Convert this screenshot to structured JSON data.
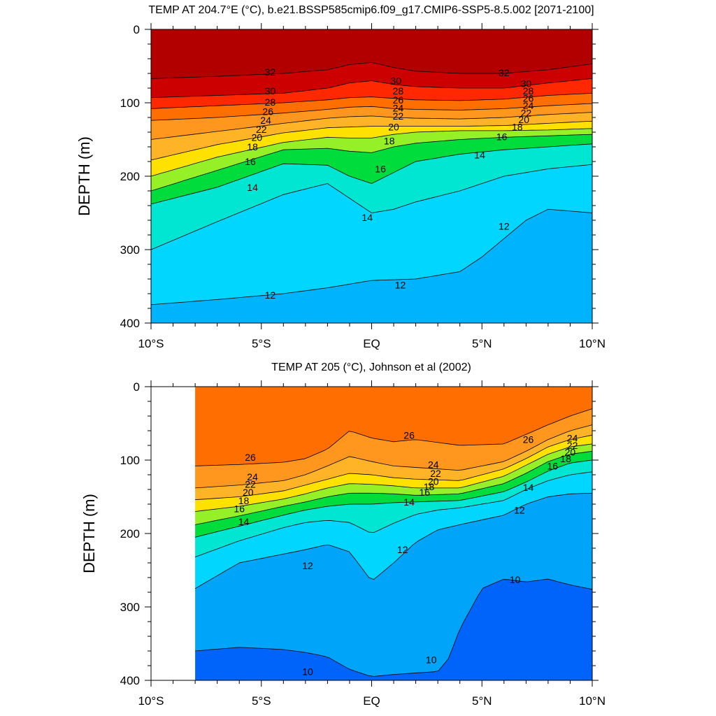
{
  "chart_data": [
    {
      "type": "contour",
      "title": "TEMP AT 204.7°E (°C), b.e21.BSSP585cmip6.f09_g17.CMIP6-SSP5-8.5.002 [2071-2100]",
      "ylabel": "DEPTH (m)",
      "xlabel": "",
      "x_ticks": [
        -10,
        -5,
        0,
        5,
        10
      ],
      "x_tick_labels": [
        "10°S",
        "5°S",
        "EQ",
        "5°N",
        "10°N"
      ],
      "y_ticks": [
        0,
        100,
        200,
        300,
        400
      ],
      "y_tick_labels": [
        "0",
        "100",
        "200",
        "300",
        "400"
      ],
      "xlim": [
        -10,
        10
      ],
      "ylim": [
        400,
        0
      ],
      "data_xlim": [
        -10,
        10
      ],
      "contour_interval": 1,
      "isotherms": [
        {
          "level": 32,
          "x": [
            -10,
            -7,
            -4,
            -2,
            -1,
            0,
            1,
            2,
            4,
            6,
            8,
            10
          ],
          "depth": [
            67,
            64,
            60,
            55,
            48,
            45,
            52,
            57,
            60,
            60,
            55,
            47
          ]
        },
        {
          "level": 30,
          "x": [
            -10,
            -7,
            -4,
            -2,
            -1,
            0,
            1,
            2,
            4,
            6,
            8,
            10
          ],
          "depth": [
            93,
            90,
            87,
            80,
            73,
            70,
            75,
            78,
            80,
            80,
            73,
            67
          ]
        },
        {
          "level": 28,
          "x": [
            -10,
            -7,
            -4,
            -2,
            -1,
            0,
            1,
            2,
            4,
            6,
            8,
            10
          ],
          "depth": [
            108,
            104,
            100,
            96,
            93,
            92,
            94,
            96,
            97,
            95,
            90,
            87
          ]
        },
        {
          "level": 26,
          "x": [
            -10,
            -7,
            -4,
            -2,
            -1,
            0,
            1,
            2,
            4,
            6,
            8,
            10
          ],
          "depth": [
            124,
            120,
            114,
            109,
            106,
            105,
            108,
            109,
            110,
            108,
            104,
            101
          ]
        },
        {
          "level": 24,
          "x": [
            -10,
            -7,
            -4,
            -2,
            -1,
            0,
            1,
            2,
            4,
            6,
            8,
            10
          ],
          "depth": [
            150,
            139,
            128,
            121,
            119,
            118,
            120,
            121,
            122,
            120,
            116,
            113
          ]
        },
        {
          "level": 22,
          "x": [
            -10,
            -7,
            -4,
            -2,
            -1,
            0,
            1,
            2,
            4,
            6,
            8,
            10
          ],
          "depth": [
            178,
            157,
            141,
            134,
            133,
            132,
            132,
            132,
            132,
            131,
            128,
            125
          ]
        },
        {
          "level": 20,
          "x": [
            -10,
            -7,
            -4,
            -2,
            -1,
            0,
            1,
            2,
            4,
            6,
            8,
            10
          ],
          "depth": [
            200,
            174,
            154,
            147,
            148,
            148,
            143,
            140,
            138,
            138,
            137,
            135
          ]
        },
        {
          "level": 18,
          "x": [
            -10,
            -7,
            -4,
            -2,
            -1,
            0,
            1,
            2,
            4,
            6,
            8,
            10
          ],
          "depth": [
            220,
            192,
            164,
            162,
            166,
            168,
            160,
            155,
            150,
            147,
            145,
            143
          ]
        },
        {
          "level": 16,
          "x": [
            -10,
            -7,
            -4,
            -2,
            -1,
            0,
            1,
            2,
            4,
            6,
            8,
            10
          ],
          "depth": [
            238,
            215,
            183,
            185,
            200,
            210,
            195,
            180,
            170,
            164,
            160,
            156
          ]
        },
        {
          "level": 14,
          "x": [
            -10,
            -7,
            -4,
            -2,
            -1,
            0,
            1,
            2,
            4,
            6,
            8,
            10
          ],
          "depth": [
            300,
            262,
            225,
            210,
            230,
            250,
            245,
            235,
            220,
            200,
            190,
            184
          ]
        },
        {
          "level": 12,
          "x": [
            -10,
            -7,
            -4,
            -2,
            0,
            2,
            4,
            5,
            6,
            7,
            8,
            10
          ],
          "depth": [
            375,
            368,
            360,
            352,
            342,
            340,
            330,
            310,
            285,
            260,
            245,
            250
          ]
        }
      ],
      "contour_labels": [
        {
          "text": "32",
          "x": -4.6,
          "depth": 58
        },
        {
          "text": "32",
          "x": 6.0,
          "depth": 59
        },
        {
          "text": "30",
          "x": -4.6,
          "depth": 84
        },
        {
          "text": "30",
          "x": 1.1,
          "depth": 70
        },
        {
          "text": "30",
          "x": 7.0,
          "depth": 74
        },
        {
          "text": "28",
          "x": -4.6,
          "depth": 99
        },
        {
          "text": "28",
          "x": 1.2,
          "depth": 84
        },
        {
          "text": "28",
          "x": 7.1,
          "depth": 84
        },
        {
          "text": "26",
          "x": -4.7,
          "depth": 112
        },
        {
          "text": "26",
          "x": 1.2,
          "depth": 96
        },
        {
          "text": "26",
          "x": 7.1,
          "depth": 94
        },
        {
          "text": "24",
          "x": -4.8,
          "depth": 124
        },
        {
          "text": "24",
          "x": 1.2,
          "depth": 107
        },
        {
          "text": "24",
          "x": 7.1,
          "depth": 104
        },
        {
          "text": "22",
          "x": -5.0,
          "depth": 136
        },
        {
          "text": "22",
          "x": 1.2,
          "depth": 118
        },
        {
          "text": "22",
          "x": 7.0,
          "depth": 114
        },
        {
          "text": "20",
          "x": -5.2,
          "depth": 147
        },
        {
          "text": "20",
          "x": 1.0,
          "depth": 133
        },
        {
          "text": "20",
          "x": 6.9,
          "depth": 123
        },
        {
          "text": "18",
          "x": -5.4,
          "depth": 160
        },
        {
          "text": "18",
          "x": 0.8,
          "depth": 152
        },
        {
          "text": "18",
          "x": 6.6,
          "depth": 133
        },
        {
          "text": "16",
          "x": -5.5,
          "depth": 180
        },
        {
          "text": "16",
          "x": 0.4,
          "depth": 190
        },
        {
          "text": "16",
          "x": 5.9,
          "depth": 146
        },
        {
          "text": "14",
          "x": -5.4,
          "depth": 215
        },
        {
          "text": "14",
          "x": -0.2,
          "depth": 256
        },
        {
          "text": "14",
          "x": 4.9,
          "depth": 171
        },
        {
          "text": "12",
          "x": -4.6,
          "depth": 362
        },
        {
          "text": "12",
          "x": 1.3,
          "depth": 348
        },
        {
          "text": "12",
          "x": 6.0,
          "depth": 268
        }
      ]
    },
    {
      "type": "contour",
      "title": "TEMP AT 205 (°C), Johnson et al (2002)",
      "ylabel": "DEPTH (m)",
      "xlabel": "",
      "x_ticks": [
        -10,
        -5,
        0,
        5,
        10
      ],
      "x_tick_labels": [
        "10°S",
        "5°S",
        "EQ",
        "5°N",
        "10°N"
      ],
      "y_ticks": [
        0,
        100,
        200,
        300,
        400
      ],
      "y_tick_labels": [
        "0",
        "100",
        "200",
        "300",
        "400"
      ],
      "xlim": [
        -10,
        10
      ],
      "ylim": [
        400,
        0
      ],
      "data_xlim": [
        -8,
        10
      ],
      "contour_interval": 1,
      "isotherms": [
        {
          "level": 26,
          "x": [
            -8,
            -6,
            -4,
            -3,
            -2,
            -1,
            0,
            1,
            2,
            3,
            4,
            6,
            7,
            8,
            9,
            10
          ],
          "depth": [
            108,
            106,
            103,
            98,
            85,
            60,
            70,
            75,
            72,
            76,
            80,
            78,
            65,
            52,
            40,
            30
          ]
        },
        {
          "level": 24,
          "x": [
            -8,
            -6,
            -4,
            -3,
            -2,
            -1,
            0,
            1,
            2,
            3,
            4,
            6,
            7,
            8,
            9,
            10
          ],
          "depth": [
            138,
            134,
            128,
            120,
            108,
            95,
            102,
            108,
            110,
            112,
            114,
            102,
            88,
            72,
            60,
            52
          ]
        },
        {
          "level": 22,
          "x": [
            -8,
            -6,
            -4,
            -3,
            -2,
            -1,
            0,
            1,
            2,
            3,
            4,
            6,
            7,
            8,
            9,
            10
          ],
          "depth": [
            154,
            150,
            142,
            134,
            126,
            118,
            120,
            124,
            126,
            127,
            128,
            112,
            98,
            82,
            72,
            66
          ]
        },
        {
          "level": 20,
          "x": [
            -8,
            -6,
            -4,
            -3,
            -2,
            -1,
            0,
            1,
            2,
            3,
            4,
            6,
            7,
            8,
            9,
            10
          ],
          "depth": [
            170,
            163,
            153,
            146,
            138,
            132,
            133,
            135,
            138,
            138,
            138,
            122,
            107,
            92,
            82,
            78
          ]
        },
        {
          "level": 18,
          "x": [
            -8,
            -6,
            -4,
            -3,
            -2,
            -1,
            0,
            1,
            2,
            3,
            4,
            6,
            7,
            8,
            9,
            10
          ],
          "depth": [
            188,
            176,
            163,
            157,
            150,
            145,
            145,
            146,
            148,
            147,
            146,
            132,
            118,
            102,
            92,
            88
          ]
        },
        {
          "level": 16,
          "x": [
            -8,
            -6,
            -4,
            -3,
            -2,
            -1,
            0,
            1,
            2,
            3,
            4,
            6,
            7,
            8,
            9,
            10
          ],
          "depth": [
            205,
            190,
            175,
            168,
            163,
            160,
            160,
            158,
            157,
            156,
            155,
            143,
            130,
            115,
            104,
            100
          ]
        },
        {
          "level": 14,
          "x": [
            -8,
            -6,
            -4,
            -3,
            -2,
            -1,
            0,
            1,
            2,
            3,
            4,
            6,
            7,
            8,
            9,
            10
          ],
          "depth": [
            232,
            210,
            192,
            185,
            182,
            185,
            200,
            186,
            174,
            168,
            165,
            155,
            140,
            128,
            120,
            116
          ]
        },
        {
          "level": 12,
          "x": [
            -8,
            -6,
            -4,
            -3,
            -2,
            -1,
            0,
            1,
            2,
            3,
            4,
            6,
            7,
            8,
            9,
            10
          ],
          "depth": [
            275,
            240,
            228,
            222,
            215,
            225,
            265,
            240,
            212,
            195,
            188,
            175,
            160,
            150,
            146,
            145
          ]
        },
        {
          "level": 10,
          "x": [
            -8,
            -6,
            -4,
            -3,
            -2,
            -1,
            0,
            1,
            2,
            3,
            3.5,
            4,
            5,
            6,
            7,
            8,
            9,
            10
          ],
          "depth": [
            360,
            355,
            358,
            362,
            368,
            385,
            395,
            392,
            390,
            388,
            370,
            330,
            275,
            262,
            266,
            262,
            270,
            276
          ]
        }
      ],
      "contour_labels": [
        {
          "text": "26",
          "x": -5.5,
          "depth": 96
        },
        {
          "text": "26",
          "x": 1.7,
          "depth": 66
        },
        {
          "text": "26",
          "x": 7.1,
          "depth": 72
        },
        {
          "text": "24",
          "x": -5.4,
          "depth": 123
        },
        {
          "text": "24",
          "x": 2.8,
          "depth": 106
        },
        {
          "text": "24",
          "x": 9.1,
          "depth": 70
        },
        {
          "text": "22",
          "x": -5.5,
          "depth": 133
        },
        {
          "text": "22",
          "x": 2.9,
          "depth": 118
        },
        {
          "text": "22",
          "x": 9.1,
          "depth": 80
        },
        {
          "text": "20",
          "x": -5.6,
          "depth": 144
        },
        {
          "text": "20",
          "x": 2.8,
          "depth": 129
        },
        {
          "text": "20",
          "x": 9.0,
          "depth": 89
        },
        {
          "text": "18",
          "x": -5.8,
          "depth": 155
        },
        {
          "text": "18",
          "x": 2.6,
          "depth": 136
        },
        {
          "text": "18",
          "x": 8.8,
          "depth": 98
        },
        {
          "text": "16",
          "x": -6.0,
          "depth": 166
        },
        {
          "text": "16",
          "x": 2.4,
          "depth": 144
        },
        {
          "text": "16",
          "x": 8.2,
          "depth": 108
        },
        {
          "text": "14",
          "x": -5.8,
          "depth": 184
        },
        {
          "text": "14",
          "x": 1.7,
          "depth": 157
        },
        {
          "text": "14",
          "x": 7.1,
          "depth": 137
        },
        {
          "text": "12",
          "x": -2.9,
          "depth": 244
        },
        {
          "text": "12",
          "x": 1.4,
          "depth": 222
        },
        {
          "text": "12",
          "x": 6.7,
          "depth": 168
        },
        {
          "text": "10",
          "x": -2.9,
          "depth": 388
        },
        {
          "text": "10",
          "x": 2.7,
          "depth": 372
        },
        {
          "text": "10",
          "x": 6.5,
          "depth": 263
        }
      ]
    }
  ]
}
